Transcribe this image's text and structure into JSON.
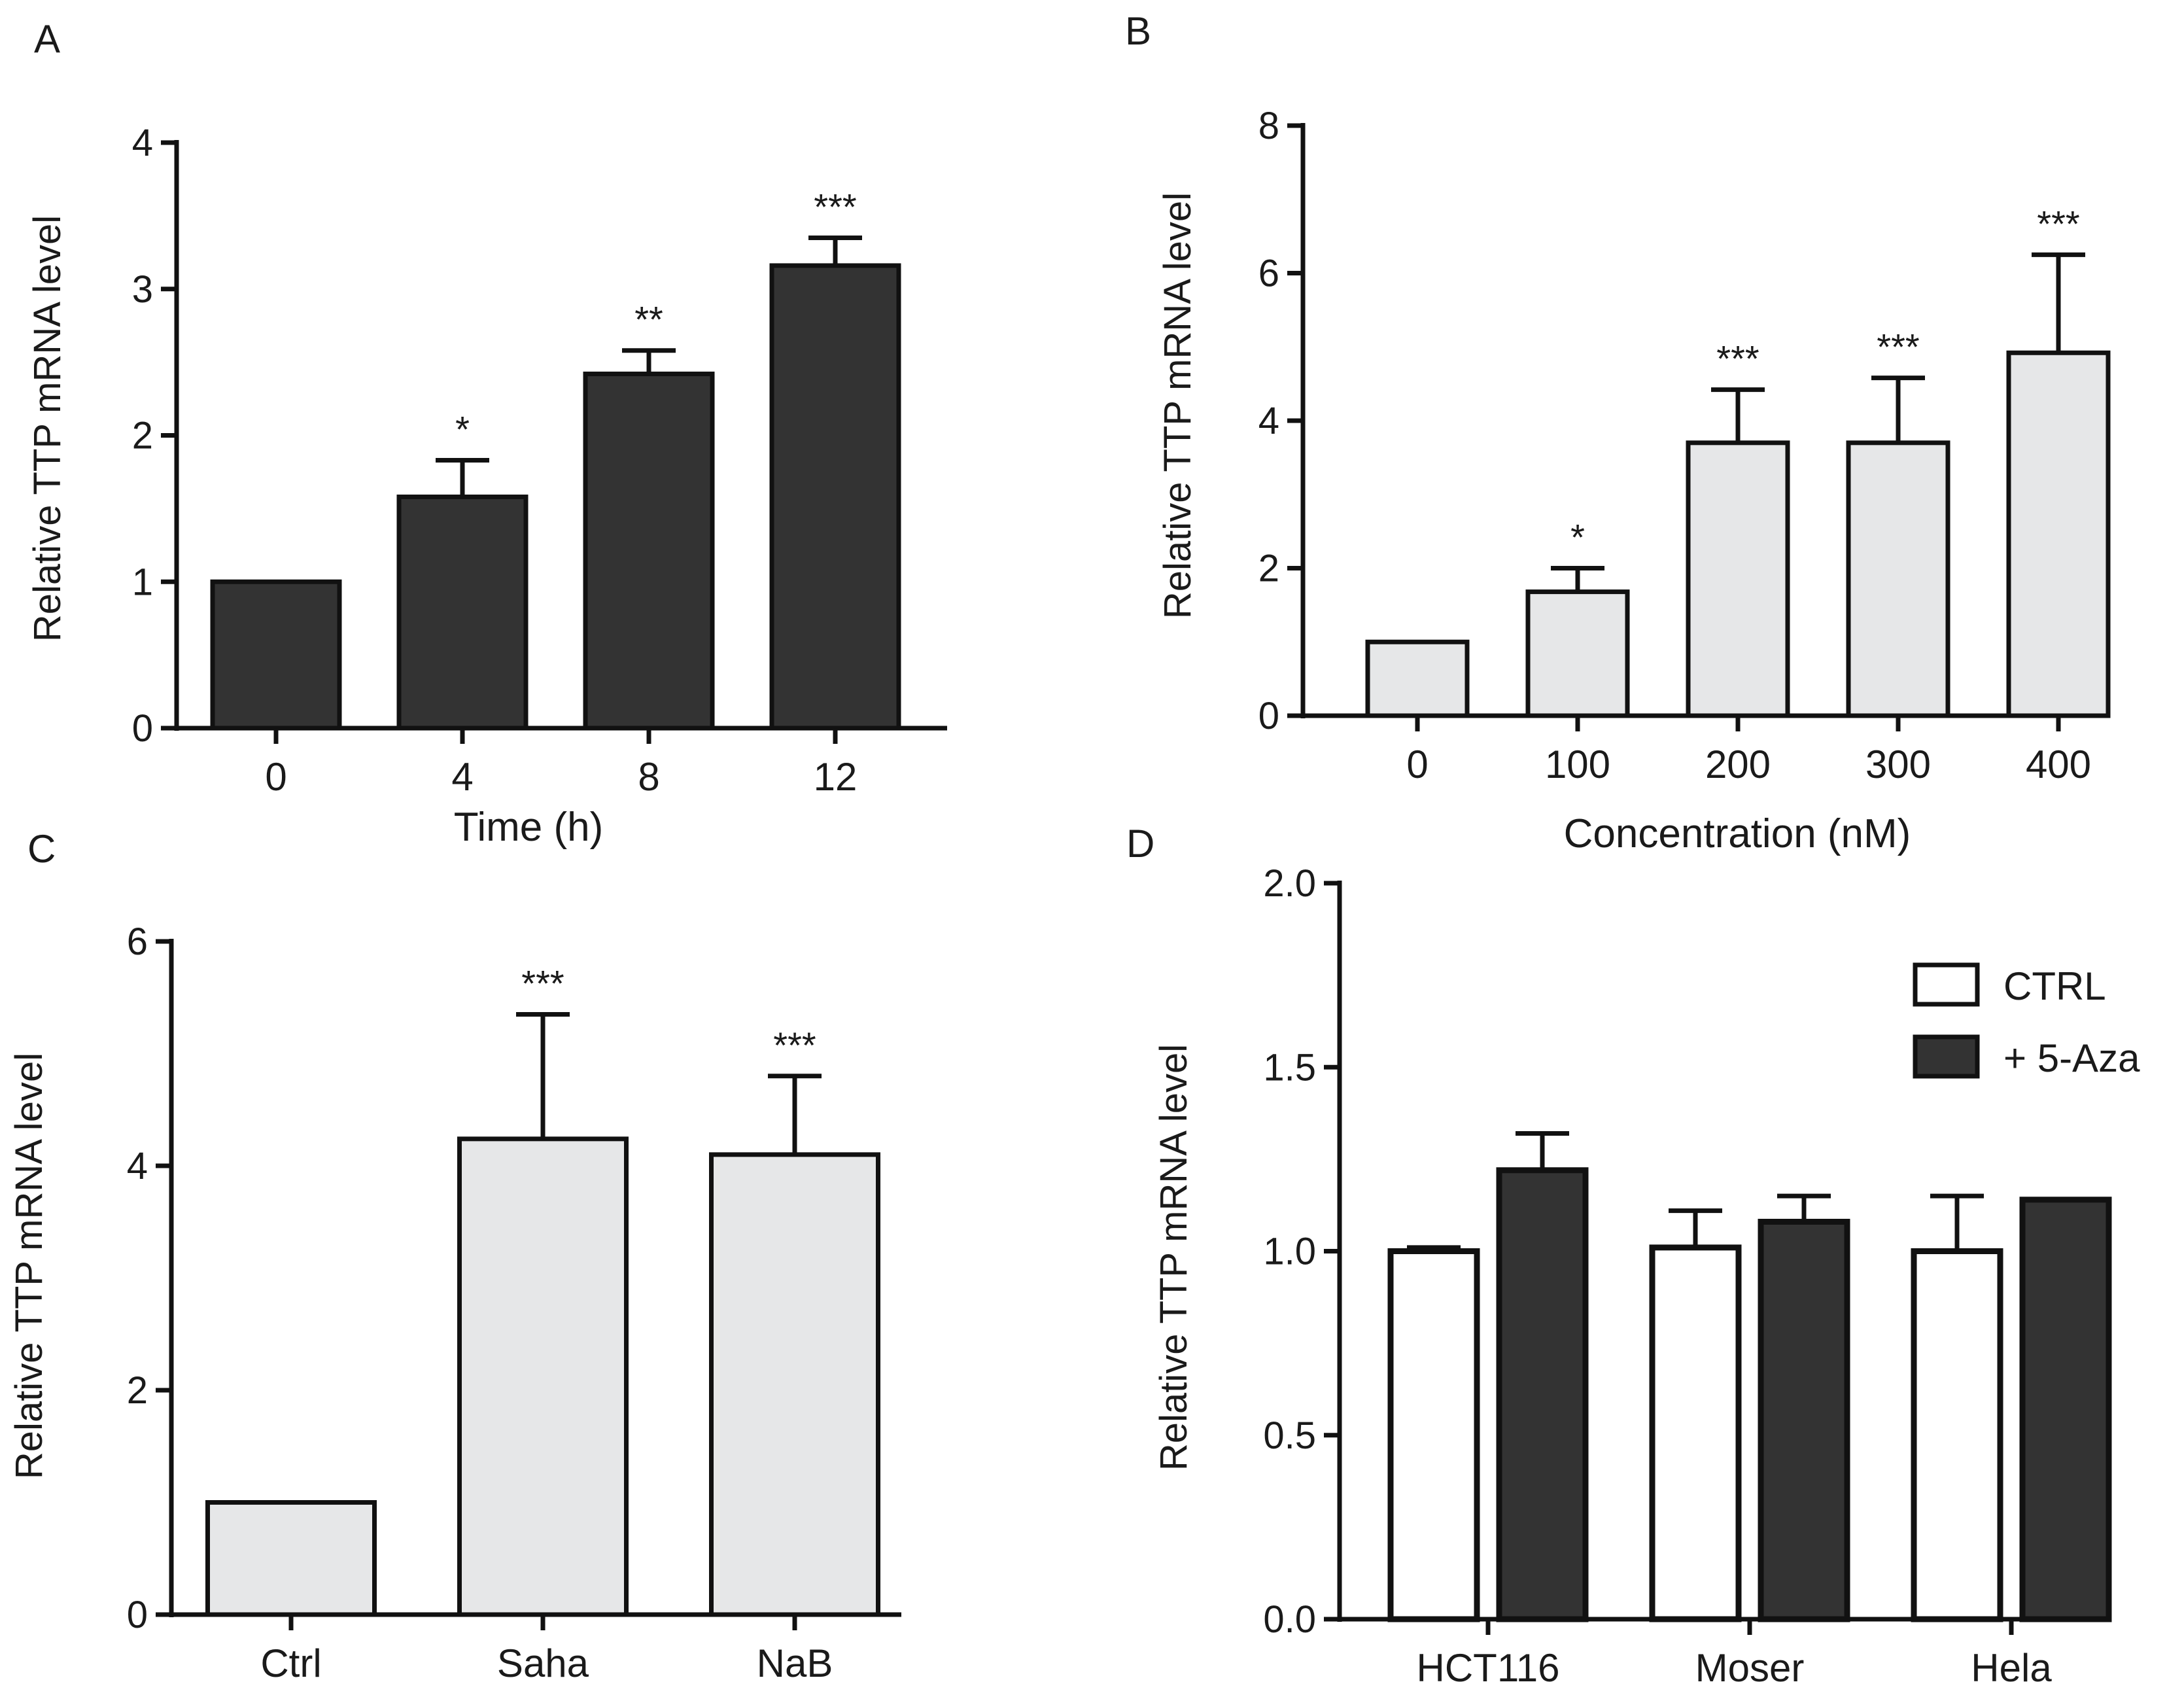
{
  "chart_data": [
    {
      "panel": "A",
      "type": "bar",
      "categories": [
        "0",
        "4",
        "8",
        "12"
      ],
      "values": [
        1.0,
        1.58,
        2.42,
        3.16
      ],
      "errors": [
        0,
        0.25,
        0.16,
        0.19
      ],
      "significance": [
        "",
        "*",
        "**",
        "***"
      ],
      "fill": "#333333",
      "xlabel": "Time (h)",
      "ylabel": "Relative TTP mRNA level",
      "ylim": [
        0,
        4
      ],
      "yticks": [
        0,
        1,
        2,
        3,
        4
      ],
      "ytick_labels": [
        "0",
        "1",
        "2",
        "3",
        "4"
      ]
    },
    {
      "panel": "B",
      "type": "bar",
      "categories": [
        "0",
        "100",
        "200",
        "300",
        "400"
      ],
      "values": [
        1.0,
        1.68,
        3.7,
        3.7,
        4.92
      ],
      "errors": [
        0,
        0.32,
        0.72,
        0.88,
        1.33
      ],
      "significance": [
        "",
        "*",
        "***",
        "***",
        "***"
      ],
      "fill": "#e6e7e8",
      "xlabel": "Concentration (nM)",
      "ylabel": "Relative TTP mRNA level",
      "ylim": [
        0,
        8
      ],
      "yticks": [
        0,
        2,
        4,
        6,
        8
      ],
      "ytick_labels": [
        "0",
        "2",
        "4",
        "6",
        "8"
      ]
    },
    {
      "panel": "C",
      "type": "bar",
      "categories": [
        "Ctrl",
        "Saha",
        "NaB"
      ],
      "values": [
        1.0,
        4.24,
        4.1
      ],
      "errors": [
        0,
        1.11,
        0.7
      ],
      "significance": [
        "",
        "***",
        "***"
      ],
      "fill": "#e6e7e8",
      "xlabel": "",
      "ylabel": "Relative TTP mRNA level",
      "ylim": [
        0,
        6
      ],
      "yticks": [
        0,
        2,
        4,
        6
      ],
      "ytick_labels": [
        "0",
        "2",
        "4",
        "6"
      ]
    },
    {
      "panel": "D",
      "type": "bar",
      "categories": [
        "HCT116",
        "Moser",
        "Hela"
      ],
      "series": [
        {
          "name": "CTRL",
          "values": [
            1.0,
            1.01,
            1.0
          ],
          "errors": [
            0.01,
            0.1,
            0.15
          ],
          "fill": "#ffffff"
        },
        {
          "name": "+ 5-Aza",
          "values": [
            1.22,
            1.08,
            1.14
          ],
          "errors": [
            0.1,
            0.07,
            0.0
          ],
          "fill": "#333333"
        }
      ],
      "xlabel": "",
      "ylabel": "Relative TTP mRNA level",
      "ylim": [
        0,
        2.0
      ],
      "yticks": [
        0,
        0.5,
        1.0,
        1.5,
        2.0
      ],
      "ytick_labels": [
        "0.0",
        "0.5",
        "1.0",
        "1.5",
        "2.0"
      ],
      "legend": "top-right"
    }
  ]
}
